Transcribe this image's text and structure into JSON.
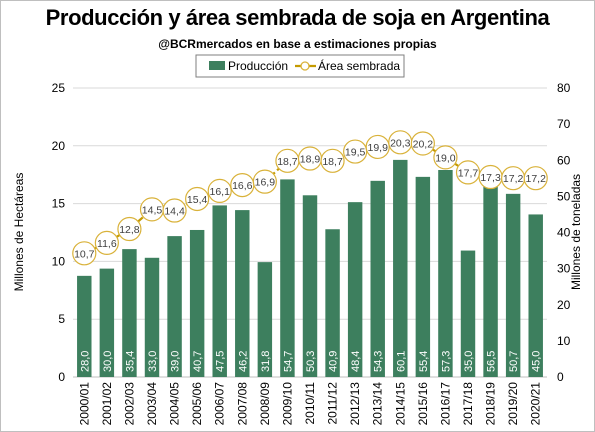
{
  "title": "Producción y área sembrada de soja en Argentina",
  "subtitle": "@BCRmercados  en base a estimaciones propias",
  "colors": {
    "bar": "#3d7f5e",
    "line": "#c49a00",
    "marker_fill": "#ffffff",
    "marker_edge": "#d9b23a",
    "grid": "#d9d9d9"
  },
  "chart_data": {
    "type": "bar+line",
    "categories": [
      "2000/01",
      "2001/02",
      "2002/03",
      "2003/04",
      "2004/05",
      "2005/06",
      "2006/07",
      "2007/08",
      "2008/09",
      "2009/10",
      "2010/11",
      "2011/12",
      "2012/13",
      "2013/14",
      "2014/15",
      "2015/16",
      "2016/17",
      "2017/18",
      "2018/19",
      "2019/20",
      "2020/21"
    ],
    "series": [
      {
        "name": "Producción",
        "type": "bar",
        "axis": "right",
        "values": [
          28.0,
          30.0,
          35.4,
          33.0,
          39.0,
          40.7,
          47.5,
          46.2,
          31.8,
          54.7,
          50.3,
          40.9,
          48.4,
          54.3,
          60.1,
          55.4,
          57.3,
          35.0,
          56.5,
          50.7,
          45.0
        ],
        "labels": [
          "28,0",
          "30,0",
          "35,4",
          "33,0",
          "39,0",
          "40,7",
          "47,5",
          "46,2",
          "31,8",
          "54,7",
          "50,3",
          "40,9",
          "48,4",
          "54,3",
          "60,1",
          "55,4",
          "57,3",
          "35,0",
          "56,5",
          "50,7",
          "45,0"
        ]
      },
      {
        "name": "Área sembrada",
        "type": "line",
        "axis": "left",
        "values": [
          10.7,
          11.6,
          12.8,
          14.5,
          14.4,
          15.4,
          16.1,
          16.6,
          16.9,
          18.7,
          18.9,
          18.7,
          19.5,
          19.9,
          20.3,
          20.2,
          19.0,
          17.7,
          17.3,
          17.2,
          17.2
        ],
        "labels": [
          "10,7",
          "11,6",
          "12,8",
          "14,5",
          "14,4",
          "15,4",
          "16,1",
          "16,6",
          "16,9",
          "18,7",
          "18,9",
          "18,7",
          "19,5",
          "19,9",
          "20,3",
          "20,2",
          "19,0",
          "17,7",
          "17,3",
          "17,2",
          "17,2"
        ]
      }
    ],
    "ylabel_left": "Millones de Hectáreas",
    "ylabel_right": "Millones de toneladas",
    "ylim_left": [
      0,
      25
    ],
    "ylim_right": [
      0,
      80
    ],
    "yticks_left": [
      "0",
      "5",
      "10",
      "15",
      "20",
      "25"
    ],
    "yticks_right": [
      "0",
      "10",
      "20",
      "30",
      "40",
      "50",
      "60",
      "70",
      "80"
    ],
    "grid": true,
    "legend_position": "top-center"
  }
}
